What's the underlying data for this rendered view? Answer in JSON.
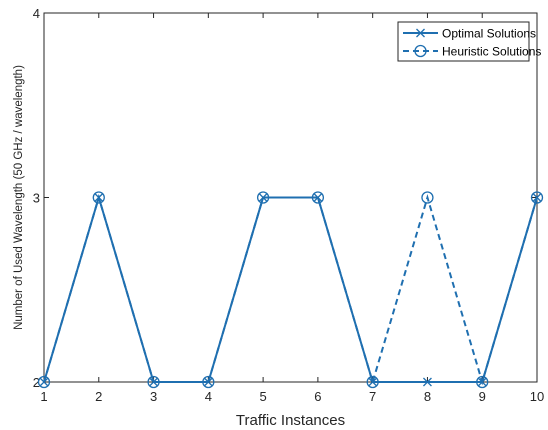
{
  "chart_data": {
    "type": "line",
    "xlabel": "Traffic Instances",
    "ylabel": "Number of Used Wavelength (50 GHz / wavelength)",
    "xlim": [
      1,
      10
    ],
    "ylim": [
      2,
      4
    ],
    "xticks": [
      1,
      2,
      3,
      4,
      5,
      6,
      7,
      8,
      9,
      10
    ],
    "yticks": [
      2,
      3,
      4
    ],
    "grid": false,
    "legend_position": "top-right",
    "x": [
      1,
      2,
      3,
      4,
      5,
      6,
      7,
      8,
      9,
      10
    ],
    "series": [
      {
        "name": "Optimal Solutions",
        "values": [
          2,
          3,
          2,
          2,
          3,
          3,
          2,
          2,
          2,
          3
        ],
        "marker": "x",
        "line_style": "solid",
        "color": "#1f6fb0"
      },
      {
        "name": "Heuristic Solutions",
        "values": [
          2,
          3,
          2,
          2,
          3,
          3,
          2,
          3,
          2,
          3
        ],
        "marker": "o",
        "line_style": "dashed",
        "color": "#1f6fb0"
      }
    ]
  }
}
